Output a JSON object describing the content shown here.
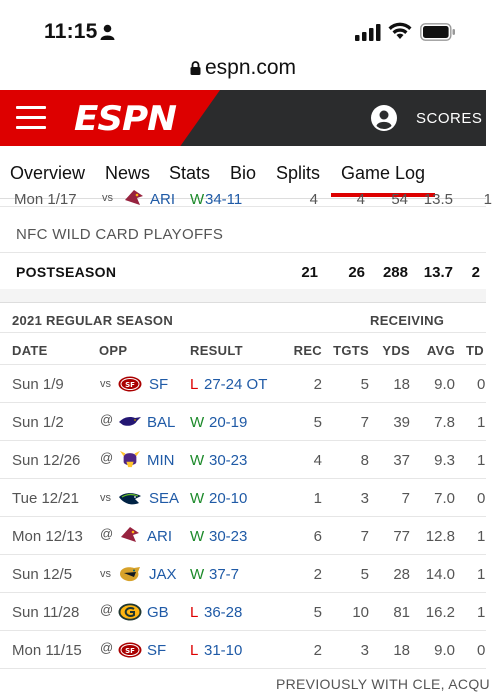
{
  "status_bar": {
    "time": "11:15"
  },
  "browser": {
    "url": "espn.com"
  },
  "header": {
    "logo": "ESPN",
    "scores_label": "SCORES"
  },
  "tabs": [
    {
      "label": "Overview"
    },
    {
      "label": "News"
    },
    {
      "label": "Stats"
    },
    {
      "label": "Bio"
    },
    {
      "label": "Splits"
    },
    {
      "label": "Game Log",
      "active": true
    }
  ],
  "partial_row": {
    "date": "Mon 1/17",
    "venue": "vs",
    "opp": "ARI",
    "result_code": "W",
    "result_score": "34-11",
    "rec": "4",
    "tgts": "4",
    "yds": "54",
    "avg": "13.5",
    "td": "1"
  },
  "playoffs_label": "NFC WILD CARD PLAYOFFS",
  "postseason": {
    "label": "POSTSEASON",
    "rec": "21",
    "tgts": "26",
    "yds": "288",
    "avg": "13.7",
    "td": "2"
  },
  "regular_season": {
    "title": "2021 REGULAR SEASON",
    "category": "RECEIVING",
    "columns": {
      "date": "DATE",
      "opp": "OPP",
      "result": "RESULT",
      "rec": "REC",
      "tgts": "TGTS",
      "yds": "YDS",
      "avg": "AVG",
      "td": "TD"
    },
    "rows": [
      {
        "date": "Sun 1/9",
        "venue": "vs",
        "opp": "SF",
        "team_logo": "49ers-logo",
        "result_code": "L",
        "result_score": "27-24 OT",
        "rec": "2",
        "tgts": "5",
        "yds": "18",
        "avg": "9.0",
        "td": "0"
      },
      {
        "date": "Sun 1/2",
        "venue": "@",
        "opp": "BAL",
        "team_logo": "ravens-logo",
        "result_code": "W",
        "result_score": "20-19",
        "rec": "5",
        "tgts": "7",
        "yds": "39",
        "avg": "7.8",
        "td": "1"
      },
      {
        "date": "Sun 12/26",
        "venue": "@",
        "opp": "MIN",
        "team_logo": "vikings-logo",
        "result_code": "W",
        "result_score": "30-23",
        "rec": "4",
        "tgts": "8",
        "yds": "37",
        "avg": "9.3",
        "td": "1"
      },
      {
        "date": "Tue 12/21",
        "venue": "vs",
        "opp": "SEA",
        "team_logo": "seahawks-logo",
        "result_code": "W",
        "result_score": "20-10",
        "rec": "1",
        "tgts": "3",
        "yds": "7",
        "avg": "7.0",
        "td": "0"
      },
      {
        "date": "Mon 12/13",
        "venue": "@",
        "opp": "ARI",
        "team_logo": "cardinals-logo",
        "result_code": "W",
        "result_score": "30-23",
        "rec": "6",
        "tgts": "7",
        "yds": "77",
        "avg": "12.8",
        "td": "1"
      },
      {
        "date": "Sun 12/5",
        "venue": "vs",
        "opp": "JAX",
        "team_logo": "jaguars-logo",
        "result_code": "W",
        "result_score": "37-7",
        "rec": "2",
        "tgts": "5",
        "yds": "28",
        "avg": "14.0",
        "td": "1"
      },
      {
        "date": "Sun 11/28",
        "venue": "@",
        "opp": "GB",
        "team_logo": "packers-logo",
        "result_code": "L",
        "result_score": "36-28",
        "rec": "5",
        "tgts": "10",
        "yds": "81",
        "avg": "16.2",
        "td": "1"
      },
      {
        "date": "Mon 11/15",
        "venue": "@",
        "opp": "SF",
        "team_logo": "49ers-logo",
        "result_code": "L",
        "result_score": "31-10",
        "rec": "2",
        "tgts": "3",
        "yds": "18",
        "avg": "9.0",
        "td": "0"
      }
    ]
  },
  "footer_note": "PREVIOUSLY WITH CLE, ACQU",
  "colors": {
    "espn_red": "#dd0000",
    "header_dark": "#2b2c2d",
    "win": "#1c8a2a",
    "loss": "#dd0000",
    "link": "#1f5aa6"
  }
}
